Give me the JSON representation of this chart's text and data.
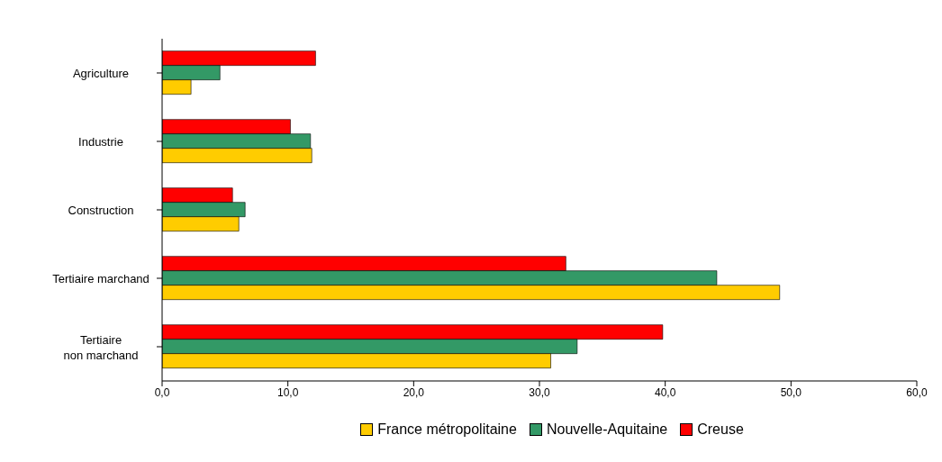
{
  "chart_data": {
    "type": "bar",
    "orientation": "horizontal",
    "categories": [
      "Agriculture",
      "Industrie",
      "Construction",
      "Tertiaire marchand",
      "Tertiaire non marchand"
    ],
    "series": [
      {
        "name": "France métropolitaine",
        "color": "#ffcc00",
        "values": [
          2.3,
          11.9,
          6.1,
          49.1,
          30.9
        ]
      },
      {
        "name": "Nouvelle-Aquitaine",
        "color": "#339966",
        "values": [
          4.6,
          11.8,
          6.6,
          44.1,
          33.0
        ]
      },
      {
        "name": "Creuse",
        "color": "#ff0000",
        "values": [
          12.2,
          10.2,
          5.6,
          32.1,
          39.8
        ]
      }
    ],
    "xlim": [
      0,
      60
    ],
    "xticks": [
      {
        "value": 0,
        "label": "0,0"
      },
      {
        "value": 10,
        "label": "10,0"
      },
      {
        "value": 20,
        "label": "20,0"
      },
      {
        "value": 30,
        "label": "30,0"
      },
      {
        "value": 40,
        "label": "40,0"
      },
      {
        "value": 50,
        "label": "50,0"
      },
      {
        "value": 60,
        "label": "60,0"
      }
    ],
    "grid": false,
    "legend": "bottom"
  }
}
